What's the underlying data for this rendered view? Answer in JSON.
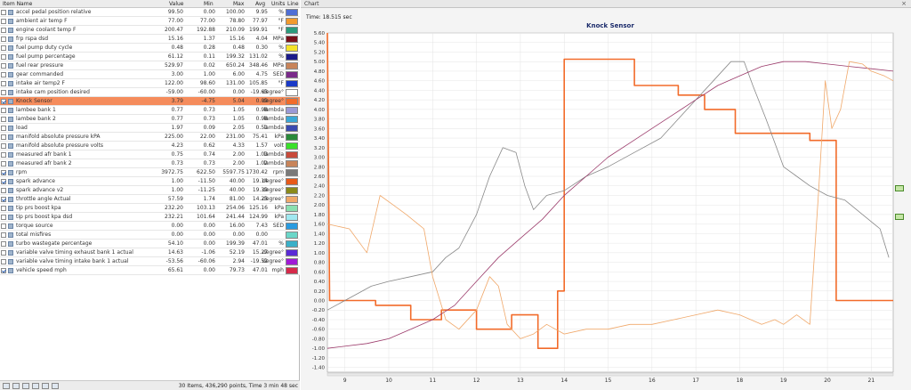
{
  "left_header": {
    "item_name": "Item Name",
    "value": "Value",
    "min": "Min",
    "max": "Max",
    "avg": "Avg",
    "units": "Units",
    "line": "Line"
  },
  "rows": [
    {
      "name": "accel pedal position relative",
      "value": "99.50",
      "min": "0.00",
      "max": "100.00",
      "avg": "9.95",
      "units": "%",
      "color": "#4f6fd6",
      "checked": false
    },
    {
      "name": "ambient air temp F",
      "value": "77.00",
      "min": "77.00",
      "max": "78.80",
      "avg": "77.97",
      "units": "°F",
      "color": "#f29a2e",
      "checked": false
    },
    {
      "name": "engine coolant temp F",
      "value": "200.47",
      "min": "192.88",
      "max": "210.09",
      "avg": "199.91",
      "units": "°F",
      "color": "#2a9b7c",
      "checked": false
    },
    {
      "name": "frp rspa dsd",
      "value": "15.16",
      "min": "1.37",
      "max": "15.16",
      "avg": "4.04",
      "units": "MPa",
      "color": "#7a0f1a",
      "checked": false
    },
    {
      "name": "fuel pump duty cycle",
      "value": "0.48",
      "min": "0.28",
      "max": "0.48",
      "avg": "0.30",
      "units": "%",
      "color": "#f4e22a",
      "checked": false
    },
    {
      "name": "fuel pump percentage",
      "value": "61.12",
      "min": "0.11",
      "max": "199.32",
      "avg": "131.02",
      "units": "%",
      "color": "#1a1a8a",
      "checked": false
    },
    {
      "name": "fuel rear pressure",
      "value": "529.97",
      "min": "0.02",
      "max": "650.24",
      "avg": "348.46",
      "units": "MPa",
      "color": "#c8845a",
      "checked": false
    },
    {
      "name": "gear commanded",
      "value": "3.00",
      "min": "1.00",
      "max": "6.00",
      "avg": "4.75",
      "units": "SED",
      "color": "#7a2a8a",
      "checked": false
    },
    {
      "name": "intake air temp2 F",
      "value": "122.00",
      "min": "98.60",
      "max": "131.00",
      "avg": "105.85",
      "units": "°F",
      "color": "#1a3ac8",
      "checked": false
    },
    {
      "name": "intake cam position desired",
      "value": "-59.00",
      "min": "-60.00",
      "max": "0.00",
      "avg": "-19.63",
      "units": "degree°",
      "color": "#ffffff",
      "checked": false
    },
    {
      "name": "Knock Sensor",
      "value": "3.79",
      "min": "-4.75",
      "max": "5.04",
      "avg": "0.09",
      "units": "degree°",
      "color": "#f26b2a",
      "checked": true,
      "selected": true
    },
    {
      "name": "lambee bank 1",
      "value": "0.77",
      "min": "0.73",
      "max": "1.05",
      "avg": "0.98",
      "units": "lambda",
      "color": "#9b9ad6",
      "checked": false
    },
    {
      "name": "lambee bank 2",
      "value": "0.77",
      "min": "0.73",
      "max": "1.05",
      "avg": "0.98",
      "units": "lambda",
      "color": "#3aa8d6",
      "checked": false
    },
    {
      "name": "load",
      "value": "1.97",
      "min": "0.09",
      "max": "2.05",
      "avg": "0.51",
      "units": "lambda",
      "color": "#3a4ab0",
      "checked": false
    },
    {
      "name": "manifold absolute pressure kPA",
      "value": "225.00",
      "min": "22.00",
      "max": "231.00",
      "avg": "75.41",
      "units": "kPa",
      "color": "#2a8a3a",
      "checked": false
    },
    {
      "name": "manifold absolute pressure volts",
      "value": "4.23",
      "min": "0.62",
      "max": "4.33",
      "avg": "1.57",
      "units": "volt",
      "color": "#3ae02a",
      "checked": false
    },
    {
      "name": "measured afr bank 1",
      "value": "0.75",
      "min": "0.74",
      "max": "2.00",
      "avg": "1.03",
      "units": "lambda",
      "color": "#c84a3a",
      "checked": false
    },
    {
      "name": "measured afr bank 2",
      "value": "0.73",
      "min": "0.73",
      "max": "2.00",
      "avg": "1.02",
      "units": "lambda",
      "color": "#c8845a",
      "checked": false
    },
    {
      "name": "rpm",
      "value": "3972.75",
      "min": "622.50",
      "max": "5597.75",
      "avg": "1730.42",
      "units": "rpm",
      "color": "#7a7a7a",
      "checked": true
    },
    {
      "name": "spark advance",
      "value": "1.00",
      "min": "-11.50",
      "max": "40.00",
      "avg": "19.14",
      "units": "degree°",
      "color": "#e85a1a",
      "checked": true
    },
    {
      "name": "spark advance v2",
      "value": "1.00",
      "min": "-11.25",
      "max": "40.00",
      "avg": "19.39",
      "units": "degree°",
      "color": "#8a8a1a",
      "checked": false
    },
    {
      "name": "throttle angle Actual",
      "value": "57.59",
      "min": "1.74",
      "max": "81.00",
      "avg": "14.23",
      "units": "degree°",
      "color": "#f0a86a",
      "checked": true
    },
    {
      "name": "tip prs boost kpa",
      "value": "232.20",
      "min": "103.13",
      "max": "254.06",
      "avg": "125.16",
      "units": "kPa",
      "color": "#8ae0b0",
      "checked": false
    },
    {
      "name": "tip prs boost kpa dsd",
      "value": "232.21",
      "min": "101.64",
      "max": "241.44",
      "avg": "124.99",
      "units": "kPa",
      "color": "#a0e8f0",
      "checked": false
    },
    {
      "name": "torque source",
      "value": "0.00",
      "min": "0.00",
      "max": "16.00",
      "avg": "7.43",
      "units": "SED",
      "color": "#2a9be0",
      "checked": false
    },
    {
      "name": "total misfires",
      "value": "0.00",
      "min": "0.00",
      "max": "0.00",
      "avg": "0.00",
      "units": "",
      "color": "#6ad6c8",
      "checked": false
    },
    {
      "name": "turbo wastegate percentage",
      "value": "54.10",
      "min": "0.00",
      "max": "199.39",
      "avg": "47.01",
      "units": "%",
      "color": "#3ab0c8",
      "checked": false
    },
    {
      "name": "variable valve timing exhaust bank 1 actual",
      "value": "14.63",
      "min": "-1.06",
      "max": "52.19",
      "avg": "15.27",
      "units": "degree°",
      "color": "#5a2ad6",
      "checked": false
    },
    {
      "name": "variable valve timing intake bank 1 actual",
      "value": "-53.56",
      "min": "-60.06",
      "max": "2.94",
      "avg": "-19.52",
      "units": "degree°",
      "color": "#a01ad6",
      "checked": false
    },
    {
      "name": "vehicle speed mph",
      "value": "65.61",
      "min": "0.00",
      "max": "79.73",
      "avg": "47.01",
      "units": "mph",
      "color": "#d62a4a",
      "checked": true
    }
  ],
  "left_footer": {
    "status": "30 Items, 436,290 points, Time 3 min 48 sec"
  },
  "right_panel": {
    "title": "Chart",
    "time_label": "Time: 18.515 sec"
  },
  "chart_data": {
    "type": "line",
    "title": "Knock Sensor",
    "xlabel": "",
    "ylabel": "",
    "xlim": [
      8.6,
      21.5
    ],
    "ylim": [
      -1.5,
      5.6
    ],
    "x_ticks": [
      9,
      10,
      11,
      12,
      13,
      14,
      15,
      16,
      17,
      18,
      19,
      20,
      21
    ],
    "y_ticks": [
      -1.4,
      -1.2,
      -1.0,
      -0.8,
      -0.6,
      -0.4,
      -0.2,
      0.0,
      0.2,
      0.4,
      0.6,
      0.8,
      1.0,
      1.2,
      1.4,
      1.6,
      1.8,
      2.0,
      2.2,
      2.4,
      2.6,
      2.8,
      3.0,
      3.2,
      3.4,
      3.6,
      3.8,
      4.0,
      4.2,
      4.4,
      4.6,
      4.8,
      5.0,
      5.2,
      5.4,
      5.6
    ],
    "grid": true,
    "series": [
      {
        "color": "#f26b2a",
        "width": 1.6,
        "step": true,
        "points": [
          [
            8.6,
            5.6
          ],
          [
            8.65,
            0.0
          ],
          [
            9.7,
            0.0
          ],
          [
            9.7,
            -0.1
          ],
          [
            10.5,
            -0.1
          ],
          [
            10.5,
            -0.4
          ],
          [
            11.2,
            -0.4
          ],
          [
            11.2,
            -0.2
          ],
          [
            12.0,
            -0.2
          ],
          [
            12.0,
            -0.6
          ],
          [
            12.8,
            -0.6
          ],
          [
            12.8,
            -0.3
          ],
          [
            13.4,
            -0.3
          ],
          [
            13.4,
            -1.0
          ],
          [
            13.85,
            -1.0
          ],
          [
            13.85,
            0.2
          ],
          [
            14.0,
            0.2
          ],
          [
            14.0,
            5.05
          ],
          [
            15.6,
            5.05
          ],
          [
            15.6,
            4.5
          ],
          [
            16.6,
            4.5
          ],
          [
            16.6,
            4.3
          ],
          [
            17.2,
            4.3
          ],
          [
            17.2,
            4.0
          ],
          [
            17.9,
            4.0
          ],
          [
            17.9,
            3.5
          ],
          [
            19.6,
            3.5
          ],
          [
            19.6,
            3.35
          ],
          [
            20.2,
            3.35
          ],
          [
            20.2,
            0.0
          ],
          [
            21.5,
            0.0
          ]
        ]
      },
      {
        "color": "#888888",
        "width": 0.8,
        "step": false,
        "points": [
          [
            8.6,
            -0.2
          ],
          [
            9.2,
            0.1
          ],
          [
            9.6,
            0.3
          ],
          [
            10.0,
            0.4
          ],
          [
            10.5,
            0.5
          ],
          [
            11.0,
            0.6
          ],
          [
            11.3,
            0.9
          ],
          [
            11.6,
            1.1
          ],
          [
            12.0,
            1.8
          ],
          [
            12.3,
            2.6
          ],
          [
            12.6,
            3.2
          ],
          [
            12.9,
            3.1
          ],
          [
            13.1,
            2.4
          ],
          [
            13.3,
            1.9
          ],
          [
            13.6,
            2.2
          ],
          [
            14.0,
            2.3
          ],
          [
            14.5,
            2.6
          ],
          [
            15.0,
            2.8
          ],
          [
            15.6,
            3.1
          ],
          [
            16.2,
            3.4
          ],
          [
            16.6,
            3.8
          ],
          [
            17.0,
            4.2
          ],
          [
            17.4,
            4.6
          ],
          [
            17.8,
            5.0
          ],
          [
            18.1,
            5.0
          ],
          [
            18.3,
            4.5
          ],
          [
            18.6,
            3.8
          ],
          [
            18.8,
            3.3
          ],
          [
            19.0,
            2.8
          ],
          [
            19.3,
            2.6
          ],
          [
            19.6,
            2.4
          ],
          [
            20.0,
            2.2
          ],
          [
            20.4,
            2.1
          ],
          [
            20.8,
            1.8
          ],
          [
            21.2,
            1.5
          ],
          [
            21.4,
            0.9
          ]
        ]
      },
      {
        "color": "#9b3a6a",
        "width": 0.8,
        "step": false,
        "points": [
          [
            8.6,
            -1.0
          ],
          [
            9.5,
            -0.9
          ],
          [
            10.0,
            -0.8
          ],
          [
            10.5,
            -0.6
          ],
          [
            11.0,
            -0.4
          ],
          [
            11.5,
            -0.1
          ],
          [
            12.0,
            0.4
          ],
          [
            12.5,
            0.9
          ],
          [
            13.0,
            1.3
          ],
          [
            13.5,
            1.7
          ],
          [
            14.0,
            2.2
          ],
          [
            14.5,
            2.6
          ],
          [
            15.0,
            3.0
          ],
          [
            15.5,
            3.3
          ],
          [
            16.0,
            3.6
          ],
          [
            16.5,
            3.9
          ],
          [
            17.0,
            4.2
          ],
          [
            17.5,
            4.5
          ],
          [
            18.0,
            4.7
          ],
          [
            18.5,
            4.9
          ],
          [
            19.0,
            5.0
          ],
          [
            19.5,
            5.0
          ],
          [
            20.0,
            4.95
          ],
          [
            20.5,
            4.9
          ],
          [
            21.0,
            4.85
          ],
          [
            21.5,
            4.8
          ]
        ]
      },
      {
        "color": "#f0a86a",
        "width": 0.8,
        "step": false,
        "points": [
          [
            8.6,
            1.6
          ],
          [
            9.1,
            1.5
          ],
          [
            9.5,
            1.0
          ],
          [
            9.8,
            2.2
          ],
          [
            10.1,
            2.0
          ],
          [
            10.4,
            1.8
          ],
          [
            10.8,
            1.5
          ],
          [
            11.0,
            0.5
          ],
          [
            11.3,
            -0.4
          ],
          [
            11.6,
            -0.6
          ],
          [
            12.0,
            -0.2
          ],
          [
            12.3,
            0.5
          ],
          [
            12.5,
            0.3
          ],
          [
            12.7,
            -0.5
          ],
          [
            13.0,
            -0.8
          ],
          [
            13.3,
            -0.7
          ],
          [
            13.6,
            -0.5
          ],
          [
            14.0,
            -0.7
          ],
          [
            14.5,
            -0.6
          ],
          [
            15.0,
            -0.6
          ],
          [
            15.5,
            -0.5
          ],
          [
            16.0,
            -0.5
          ],
          [
            16.5,
            -0.4
          ],
          [
            17.0,
            -0.3
          ],
          [
            17.5,
            -0.2
          ],
          [
            18.0,
            -0.3
          ],
          [
            18.5,
            -0.5
          ],
          [
            18.8,
            -0.4
          ],
          [
            19.0,
            -0.5
          ],
          [
            19.3,
            -0.3
          ],
          [
            19.6,
            -0.5
          ],
          [
            19.8,
            2.3
          ],
          [
            19.95,
            4.6
          ],
          [
            20.1,
            3.6
          ],
          [
            20.3,
            4.0
          ],
          [
            20.5,
            5.0
          ],
          [
            20.8,
            4.95
          ],
          [
            21.0,
            4.8
          ],
          [
            21.3,
            4.7
          ],
          [
            21.5,
            4.6
          ]
        ]
      }
    ]
  }
}
